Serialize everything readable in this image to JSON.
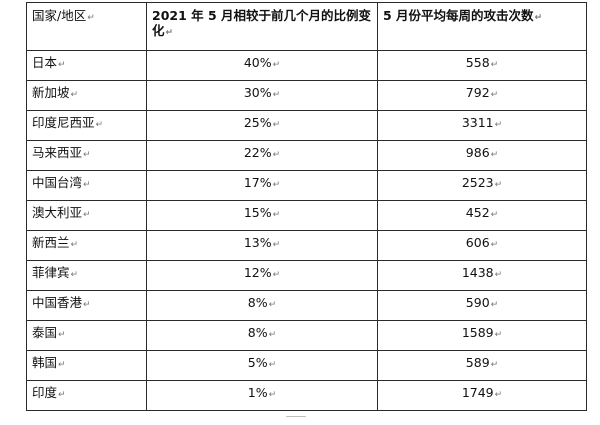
{
  "table": {
    "headers": {
      "country": "国家/地区",
      "pct_change": "2021 年 5 月相较于前几个月的比例变化",
      "weekly_attacks": "5 月份平均每周的攻击次数"
    },
    "rows": [
      {
        "country": "日本",
        "pct": "40%",
        "count": "558"
      },
      {
        "country": "新加坡",
        "pct": "30%",
        "count": "792"
      },
      {
        "country": "印度尼西亚",
        "pct": "25%",
        "count": "3311"
      },
      {
        "country": "马来西亚",
        "pct": "22%",
        "count": "986"
      },
      {
        "country": "中国台湾",
        "pct": "17%",
        "count": "2523"
      },
      {
        "country": "澳大利亚",
        "pct": "15%",
        "count": "452"
      },
      {
        "country": "新西兰",
        "pct": "13%",
        "count": "606"
      },
      {
        "country": "菲律宾",
        "pct": "12%",
        "count": "1438"
      },
      {
        "country": "中国香港",
        "pct": "8%",
        "count": "590"
      },
      {
        "country": "泰国",
        "pct": "8%",
        "count": "1589"
      },
      {
        "country": "韩国",
        "pct": "5%",
        "count": "589"
      },
      {
        "country": "印度",
        "pct": "1%",
        "count": "1749"
      }
    ]
  }
}
